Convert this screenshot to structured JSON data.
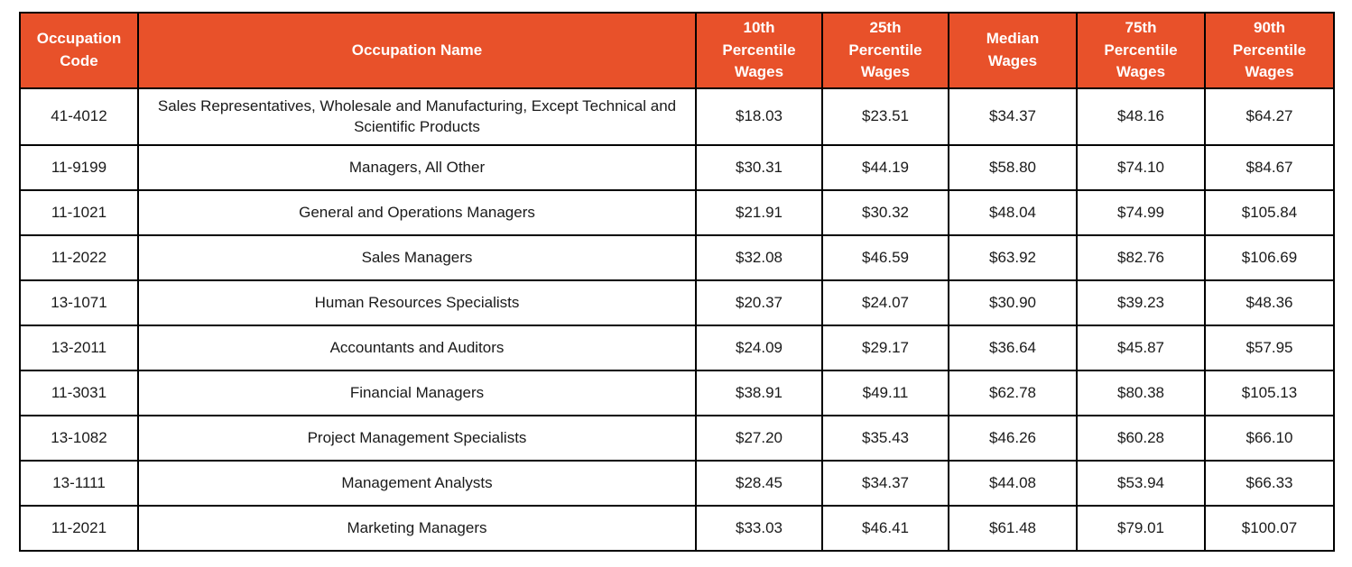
{
  "colors": {
    "header_bg": "#E8512A",
    "header_text": "#FFFFFF",
    "border": "#000000",
    "body_text": "#1A1A1A",
    "page_bg": "#FFFFFF"
  },
  "chart_data": {
    "type": "table",
    "columns": [
      "Occupation\nCode",
      "Occupation Name",
      "10th\nPercentile\nWages",
      "25th\nPercentile\nWages",
      "Median\nWages",
      "75th\nPercentile\nWages",
      "90th\nPercentile\nWages"
    ],
    "rows": [
      {
        "code": "41-4012",
        "name": "Sales Representatives, Wholesale and Manufacturing, Except Technical and Scientific Products",
        "wages": [
          "$18.03",
          "$23.51",
          "$34.37",
          "$48.16",
          "$64.27"
        ]
      },
      {
        "code": "11-9199",
        "name": "Managers, All Other",
        "wages": [
          "$30.31",
          "$44.19",
          "$58.80",
          "$74.10",
          "$84.67"
        ]
      },
      {
        "code": "11-1021",
        "name": "General and Operations Managers",
        "wages": [
          "$21.91",
          "$30.32",
          "$48.04",
          "$74.99",
          "$105.84"
        ]
      },
      {
        "code": "11-2022",
        "name": "Sales Managers",
        "wages": [
          "$32.08",
          "$46.59",
          "$63.92",
          "$82.76",
          "$106.69"
        ]
      },
      {
        "code": "13-1071",
        "name": "Human Resources Specialists",
        "wages": [
          "$20.37",
          "$24.07",
          "$30.90",
          "$39.23",
          "$48.36"
        ]
      },
      {
        "code": "13-2011",
        "name": "Accountants and Auditors",
        "wages": [
          "$24.09",
          "$29.17",
          "$36.64",
          "$45.87",
          "$57.95"
        ]
      },
      {
        "code": "11-3031",
        "name": "Financial Managers",
        "wages": [
          "$38.91",
          "$49.11",
          "$62.78",
          "$80.38",
          "$105.13"
        ]
      },
      {
        "code": "13-1082",
        "name": "Project Management Specialists",
        "wages": [
          "$27.20",
          "$35.43",
          "$46.26",
          "$60.28",
          "$66.10"
        ]
      },
      {
        "code": "13-1111",
        "name": "Management Analysts",
        "wages": [
          "$28.45",
          "$34.37",
          "$44.08",
          "$53.94",
          "$66.33"
        ]
      },
      {
        "code": "11-2021",
        "name": "Marketing Managers",
        "wages": [
          "$33.03",
          "$46.41",
          "$61.48",
          "$79.01",
          "$100.07"
        ]
      }
    ]
  }
}
